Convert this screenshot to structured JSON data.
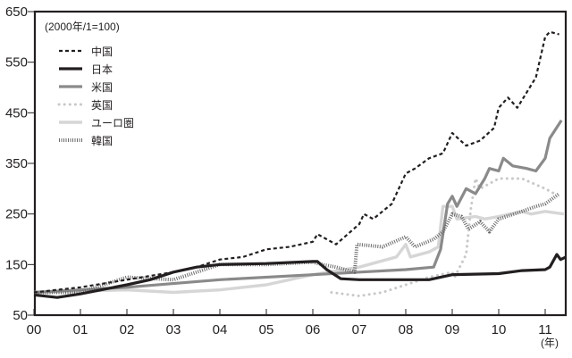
{
  "chart_data": {
    "type": "line",
    "note": "(2000年/1=100)",
    "xlabel": "(年)",
    "ylabel": "",
    "xlim": [
      2000,
      2011.45
    ],
    "ylim": [
      50,
      650
    ],
    "yticks": [
      50,
      150,
      250,
      350,
      450,
      550,
      650
    ],
    "xtick_labels": [
      "00",
      "01",
      "02",
      "03",
      "04",
      "05",
      "06",
      "07",
      "08",
      "09",
      "10",
      "11"
    ],
    "legend_position": "top-left",
    "series": [
      {
        "name": "中国",
        "style": "dashed",
        "color": "#231f20",
        "points": [
          [
            2000,
            95
          ],
          [
            2001,
            105
          ],
          [
            2002,
            120
          ],
          [
            2003,
            135
          ],
          [
            2003.5,
            145
          ],
          [
            2004,
            160
          ],
          [
            2004.5,
            165
          ],
          [
            2005,
            180
          ],
          [
            2005.5,
            185
          ],
          [
            2006,
            195
          ],
          [
            2006.1,
            210
          ],
          [
            2006.5,
            190
          ],
          [
            2007,
            230
          ],
          [
            2007.1,
            250
          ],
          [
            2007.3,
            240
          ],
          [
            2007.7,
            270
          ],
          [
            2008,
            330
          ],
          [
            2008.2,
            340
          ],
          [
            2008.5,
            360
          ],
          [
            2008.8,
            370
          ],
          [
            2009,
            410
          ],
          [
            2009.3,
            385
          ],
          [
            2009.6,
            395
          ],
          [
            2009.9,
            420
          ],
          [
            2010,
            460
          ],
          [
            2010.2,
            480
          ],
          [
            2010.4,
            460
          ],
          [
            2010.6,
            490
          ],
          [
            2010.8,
            520
          ],
          [
            2011,
            600
          ],
          [
            2011.1,
            610
          ],
          [
            2011.3,
            605
          ]
        ]
      },
      {
        "name": "日本",
        "style": "solid-bold",
        "color": "#231f20",
        "points": [
          [
            2000,
            90
          ],
          [
            2000.5,
            85
          ],
          [
            2001,
            92
          ],
          [
            2002,
            110
          ],
          [
            2002.5,
            120
          ],
          [
            2003,
            135
          ],
          [
            2003.5,
            145
          ],
          [
            2004,
            150
          ],
          [
            2005,
            152
          ],
          [
            2006,
            156
          ],
          [
            2006.1,
            156
          ],
          [
            2006.3,
            140
          ],
          [
            2006.6,
            122
          ],
          [
            2007,
            120
          ],
          [
            2008,
            120
          ],
          [
            2008.5,
            120
          ],
          [
            2009,
            130
          ],
          [
            2010,
            132
          ],
          [
            2010.5,
            138
          ],
          [
            2011,
            140
          ],
          [
            2011.1,
            145
          ],
          [
            2011.25,
            170
          ],
          [
            2011.33,
            160
          ],
          [
            2011.45,
            165
          ]
        ]
      },
      {
        "name": "米国",
        "style": "solid-gray",
        "color": "#8a8a8a",
        "points": [
          [
            2000,
            95
          ],
          [
            2002,
            105
          ],
          [
            2004,
            120
          ],
          [
            2006,
            130
          ],
          [
            2007,
            135
          ],
          [
            2008,
            140
          ],
          [
            2008.6,
            145
          ],
          [
            2008.75,
            180
          ],
          [
            2008.9,
            270
          ],
          [
            2009,
            285
          ],
          [
            2009.1,
            265
          ],
          [
            2009.3,
            300
          ],
          [
            2009.5,
            290
          ],
          [
            2009.7,
            320
          ],
          [
            2009.8,
            340
          ],
          [
            2010,
            335
          ],
          [
            2010.1,
            360
          ],
          [
            2010.3,
            345
          ],
          [
            2010.6,
            340
          ],
          [
            2010.8,
            335
          ],
          [
            2011,
            360
          ],
          [
            2011.1,
            400
          ],
          [
            2011.35,
            435
          ]
        ]
      },
      {
        "name": "英国",
        "style": "dotted",
        "color": "#c8c8c8",
        "points": [
          [
            2006.4,
            95
          ],
          [
            2007,
            88
          ],
          [
            2007.5,
            95
          ],
          [
            2008,
            110
          ],
          [
            2008.5,
            125
          ],
          [
            2009,
            135
          ],
          [
            2009.05,
            125
          ],
          [
            2009.3,
            170
          ],
          [
            2009.4,
            260
          ],
          [
            2009.5,
            320
          ],
          [
            2009.6,
            300
          ],
          [
            2009.8,
            310
          ],
          [
            2010,
            320
          ],
          [
            2010.5,
            320
          ],
          [
            2011,
            300
          ],
          [
            2011.2,
            290
          ]
        ]
      },
      {
        "name": "ユーロ圏",
        "style": "solid-light",
        "color": "#d6d6d6",
        "points": [
          [
            2000,
            95
          ],
          [
            2002,
            100
          ],
          [
            2003,
            95
          ],
          [
            2004,
            100
          ],
          [
            2005,
            110
          ],
          [
            2006,
            130
          ],
          [
            2007,
            145
          ],
          [
            2007.8,
            165
          ],
          [
            2008,
            190
          ],
          [
            2008.1,
            165
          ],
          [
            2008.5,
            175
          ],
          [
            2008.7,
            185
          ],
          [
            2008.8,
            265
          ],
          [
            2009,
            265
          ],
          [
            2009.1,
            240
          ],
          [
            2009.5,
            245
          ],
          [
            2009.7,
            240
          ],
          [
            2010,
            245
          ],
          [
            2010.5,
            255
          ],
          [
            2010.7,
            250
          ],
          [
            2011,
            255
          ],
          [
            2011.4,
            250
          ]
        ]
      },
      {
        "name": "韓国",
        "style": "hatched",
        "color": "#6b6b6b",
        "points": [
          [
            2000,
            95
          ],
          [
            2001,
            95
          ],
          [
            2002,
            125
          ],
          [
            2003,
            120
          ],
          [
            2004,
            150
          ],
          [
            2005,
            150
          ],
          [
            2006,
            155
          ],
          [
            2006.2,
            150
          ],
          [
            2006.5,
            145
          ],
          [
            2006.9,
            135
          ],
          [
            2006.95,
            190
          ],
          [
            2007.5,
            185
          ],
          [
            2008,
            205
          ],
          [
            2008.2,
            185
          ],
          [
            2008.6,
            200
          ],
          [
            2008.8,
            215
          ],
          [
            2009,
            250
          ],
          [
            2009.2,
            245
          ],
          [
            2009.35,
            220
          ],
          [
            2009.6,
            235
          ],
          [
            2009.8,
            215
          ],
          [
            2010,
            240
          ],
          [
            2010.5,
            255
          ],
          [
            2010.8,
            265
          ],
          [
            2011,
            270
          ],
          [
            2011.3,
            290
          ]
        ]
      }
    ]
  }
}
